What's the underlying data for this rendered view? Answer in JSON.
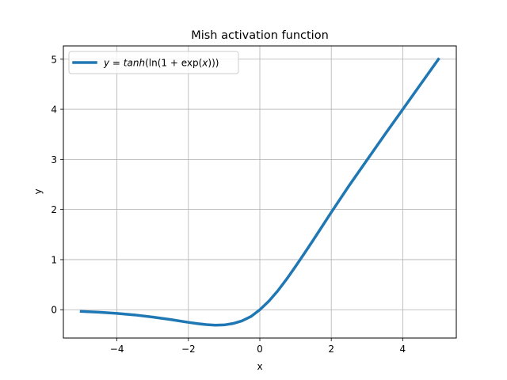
{
  "chart_data": {
    "type": "line",
    "title": "Mish activation function",
    "xlabel": "x",
    "ylabel": "y",
    "xlim": [
      -5.5,
      5.5
    ],
    "ylim": [
      -0.565,
      5.265
    ],
    "xticks": [
      -4,
      -2,
      0,
      2,
      4
    ],
    "yticks": [
      0,
      1,
      2,
      3,
      4,
      5
    ],
    "xtick_labels": [
      "−4",
      "−2",
      "0",
      "2",
      "4"
    ],
    "ytick_labels": [
      "0",
      "1",
      "2",
      "3",
      "4",
      "5"
    ],
    "grid": true,
    "legend_position": "top-left",
    "series": [
      {
        "name": "y = tanh(ln(1 + exp(x)))",
        "legend_parts": [
          "y",
          " = ",
          "tanh",
          "(ln(1 + exp(",
          "x",
          ")))"
        ],
        "color": "#1f77b4",
        "x": [
          -5.0,
          -4.5,
          -4.0,
          -3.5,
          -3.0,
          -2.5,
          -2.0,
          -1.75,
          -1.5,
          -1.25,
          -1.0,
          -0.75,
          -0.5,
          -0.25,
          0.0,
          0.25,
          0.5,
          0.75,
          1.0,
          1.25,
          1.5,
          2.0,
          2.5,
          3.0,
          3.5,
          4.0,
          4.5,
          5.0
        ],
        "y": [
          -0.034,
          -0.05,
          -0.073,
          -0.104,
          -0.146,
          -0.196,
          -0.252,
          -0.277,
          -0.297,
          -0.308,
          -0.303,
          -0.275,
          -0.222,
          -0.136,
          0.0,
          0.169,
          0.375,
          0.611,
          0.865,
          1.128,
          1.396,
          1.944,
          2.478,
          2.987,
          3.497,
          3.997,
          4.499,
          5.0
        ]
      }
    ]
  }
}
